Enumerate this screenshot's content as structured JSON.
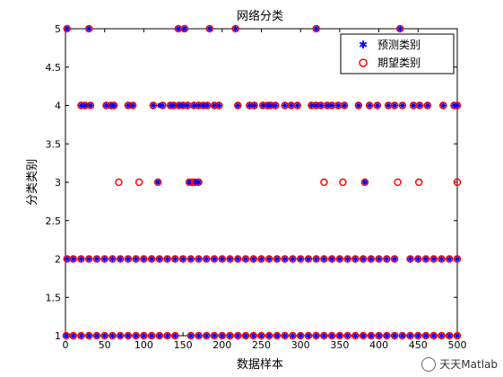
{
  "chart_data": {
    "type": "scatter",
    "title": "网络分类",
    "xlabel": "数据样本",
    "ylabel": "分类类别",
    "xlim": [
      0,
      500
    ],
    "ylim": [
      1,
      5
    ],
    "xticks": [
      0,
      50,
      100,
      150,
      200,
      250,
      300,
      350,
      400,
      450,
      500
    ],
    "yticks": [
      1,
      1.5,
      2,
      2.5,
      3,
      3.5,
      4,
      4.5,
      5
    ],
    "ytick_labels": [
      "1",
      "1.5",
      "2",
      "2.5",
      "3",
      "3.5",
      "4",
      "4.5",
      "5"
    ],
    "grid": false,
    "legend_position": "top-right",
    "series": [
      {
        "name": "预测类别",
        "marker": "star",
        "color": "#0000ff",
        "points": [
          [
            2,
            5
          ],
          [
            30,
            5
          ],
          [
            144,
            5
          ],
          [
            152,
            5
          ],
          [
            184,
            5
          ],
          [
            217,
            5
          ],
          [
            320,
            5
          ],
          [
            427,
            5
          ],
          [
            20,
            4
          ],
          [
            25,
            4
          ],
          [
            32,
            4
          ],
          [
            52,
            4
          ],
          [
            58,
            4
          ],
          [
            62,
            4
          ],
          [
            80,
            4
          ],
          [
            86,
            4
          ],
          [
            112,
            4
          ],
          [
            120,
            4
          ],
          [
            124,
            4
          ],
          [
            134,
            4
          ],
          [
            138,
            4
          ],
          [
            145,
            4
          ],
          [
            150,
            4
          ],
          [
            156,
            4
          ],
          [
            164,
            4
          ],
          [
            170,
            4
          ],
          [
            176,
            4
          ],
          [
            181,
            4
          ],
          [
            190,
            4
          ],
          [
            196,
            4
          ],
          [
            220,
            4
          ],
          [
            235,
            4
          ],
          [
            241,
            4
          ],
          [
            252,
            4
          ],
          [
            258,
            4
          ],
          [
            262,
            4
          ],
          [
            268,
            4
          ],
          [
            280,
            4
          ],
          [
            288,
            4
          ],
          [
            296,
            4
          ],
          [
            314,
            4
          ],
          [
            320,
            4
          ],
          [
            326,
            4
          ],
          [
            334,
            4
          ],
          [
            340,
            4
          ],
          [
            348,
            4
          ],
          [
            356,
            4
          ],
          [
            374,
            4
          ],
          [
            388,
            4
          ],
          [
            398,
            4
          ],
          [
            412,
            4
          ],
          [
            420,
            4
          ],
          [
            430,
            4
          ],
          [
            444,
            4
          ],
          [
            452,
            4
          ],
          [
            462,
            4
          ],
          [
            482,
            4
          ],
          [
            496,
            4
          ],
          [
            500,
            4
          ],
          [
            118,
            3
          ],
          [
            158,
            3
          ],
          [
            166,
            3
          ],
          [
            170,
            3
          ],
          [
            382,
            3
          ],
          [
            2,
            2
          ],
          [
            10,
            2
          ],
          [
            20,
            2
          ],
          [
            30,
            2
          ],
          [
            40,
            2
          ],
          [
            50,
            2
          ],
          [
            60,
            2
          ],
          [
            70,
            2
          ],
          [
            80,
            2
          ],
          [
            90,
            2
          ],
          [
            100,
            2
          ],
          [
            110,
            2
          ],
          [
            120,
            2
          ],
          [
            130,
            2
          ],
          [
            140,
            2
          ],
          [
            150,
            2
          ],
          [
            160,
            2
          ],
          [
            170,
            2
          ],
          [
            180,
            2
          ],
          [
            190,
            2
          ],
          [
            200,
            2
          ],
          [
            210,
            2
          ],
          [
            220,
            2
          ],
          [
            230,
            2
          ],
          [
            240,
            2
          ],
          [
            250,
            2
          ],
          [
            260,
            2
          ],
          [
            270,
            2
          ],
          [
            280,
            2
          ],
          [
            290,
            2
          ],
          [
            300,
            2
          ],
          [
            310,
            2
          ],
          [
            320,
            2
          ],
          [
            330,
            2
          ],
          [
            340,
            2
          ],
          [
            350,
            2
          ],
          [
            360,
            2
          ],
          [
            370,
            2
          ],
          [
            380,
            2
          ],
          [
            390,
            2
          ],
          [
            400,
            2
          ],
          [
            410,
            2
          ],
          [
            420,
            2
          ],
          [
            440,
            2
          ],
          [
            450,
            2
          ],
          [
            460,
            2
          ],
          [
            470,
            2
          ],
          [
            480,
            2
          ],
          [
            490,
            2
          ],
          [
            500,
            2
          ],
          [
            1,
            1
          ],
          [
            10,
            1
          ],
          [
            20,
            1
          ],
          [
            30,
            1
          ],
          [
            40,
            1
          ],
          [
            50,
            1
          ],
          [
            60,
            1
          ],
          [
            70,
            1
          ],
          [
            80,
            1
          ],
          [
            90,
            1
          ],
          [
            100,
            1
          ],
          [
            110,
            1
          ],
          [
            120,
            1
          ],
          [
            130,
            1
          ],
          [
            140,
            1
          ],
          [
            160,
            1
          ],
          [
            170,
            1
          ],
          [
            180,
            1
          ],
          [
            190,
            1
          ],
          [
            200,
            1
          ],
          [
            210,
            1
          ],
          [
            220,
            1
          ],
          [
            230,
            1
          ],
          [
            240,
            1
          ],
          [
            250,
            1
          ],
          [
            260,
            1
          ],
          [
            270,
            1
          ],
          [
            280,
            1
          ],
          [
            290,
            1
          ],
          [
            300,
            1
          ],
          [
            310,
            1
          ],
          [
            320,
            1
          ],
          [
            330,
            1
          ],
          [
            340,
            1
          ],
          [
            350,
            1
          ],
          [
            360,
            1
          ],
          [
            370,
            1
          ],
          [
            380,
            1
          ],
          [
            390,
            1
          ],
          [
            400,
            1
          ],
          [
            410,
            1
          ],
          [
            420,
            1
          ],
          [
            430,
            1
          ],
          [
            440,
            1
          ],
          [
            450,
            1
          ],
          [
            460,
            1
          ],
          [
            470,
            1
          ],
          [
            480,
            1
          ],
          [
            490,
            1
          ],
          [
            500,
            1
          ]
        ]
      },
      {
        "name": "期望类别",
        "marker": "circle",
        "color": "#ff0000",
        "points": [
          [
            2,
            5
          ],
          [
            30,
            5
          ],
          [
            144,
            5
          ],
          [
            152,
            5
          ],
          [
            184,
            5
          ],
          [
            217,
            5
          ],
          [
            320,
            5
          ],
          [
            427,
            5
          ],
          [
            20,
            4
          ],
          [
            25,
            4
          ],
          [
            32,
            4
          ],
          [
            52,
            4
          ],
          [
            58,
            4
          ],
          [
            62,
            4
          ],
          [
            80,
            4
          ],
          [
            86,
            4
          ],
          [
            112,
            4
          ],
          [
            124,
            4
          ],
          [
            134,
            4
          ],
          [
            138,
            4
          ],
          [
            145,
            4
          ],
          [
            150,
            4
          ],
          [
            156,
            4
          ],
          [
            164,
            4
          ],
          [
            170,
            4
          ],
          [
            176,
            4
          ],
          [
            181,
            4
          ],
          [
            190,
            4
          ],
          [
            196,
            4
          ],
          [
            220,
            4
          ],
          [
            235,
            4
          ],
          [
            241,
            4
          ],
          [
            252,
            4
          ],
          [
            258,
            4
          ],
          [
            262,
            4
          ],
          [
            268,
            4
          ],
          [
            280,
            4
          ],
          [
            288,
            4
          ],
          [
            296,
            4
          ],
          [
            314,
            4
          ],
          [
            320,
            4
          ],
          [
            326,
            4
          ],
          [
            334,
            4
          ],
          [
            340,
            4
          ],
          [
            348,
            4
          ],
          [
            356,
            4
          ],
          [
            374,
            4
          ],
          [
            388,
            4
          ],
          [
            398,
            4
          ],
          [
            412,
            4
          ],
          [
            420,
            4
          ],
          [
            430,
            4
          ],
          [
            444,
            4
          ],
          [
            452,
            4
          ],
          [
            462,
            4
          ],
          [
            482,
            4
          ],
          [
            496,
            4
          ],
          [
            500,
            4
          ],
          [
            68,
            3
          ],
          [
            94,
            3
          ],
          [
            118,
            3
          ],
          [
            158,
            3
          ],
          [
            162,
            3
          ],
          [
            166,
            3
          ],
          [
            170,
            3
          ],
          [
            330,
            3
          ],
          [
            354,
            3
          ],
          [
            382,
            3
          ],
          [
            424,
            3
          ],
          [
            451,
            3
          ],
          [
            500,
            3
          ],
          [
            2,
            2
          ],
          [
            10,
            2
          ],
          [
            20,
            2
          ],
          [
            30,
            2
          ],
          [
            40,
            2
          ],
          [
            50,
            2
          ],
          [
            60,
            2
          ],
          [
            70,
            2
          ],
          [
            80,
            2
          ],
          [
            90,
            2
          ],
          [
            100,
            2
          ],
          [
            110,
            2
          ],
          [
            120,
            2
          ],
          [
            130,
            2
          ],
          [
            140,
            2
          ],
          [
            150,
            2
          ],
          [
            160,
            2
          ],
          [
            170,
            2
          ],
          [
            180,
            2
          ],
          [
            190,
            2
          ],
          [
            200,
            2
          ],
          [
            210,
            2
          ],
          [
            220,
            2
          ],
          [
            230,
            2
          ],
          [
            240,
            2
          ],
          [
            250,
            2
          ],
          [
            260,
            2
          ],
          [
            270,
            2
          ],
          [
            280,
            2
          ],
          [
            290,
            2
          ],
          [
            300,
            2
          ],
          [
            310,
            2
          ],
          [
            320,
            2
          ],
          [
            330,
            2
          ],
          [
            340,
            2
          ],
          [
            350,
            2
          ],
          [
            360,
            2
          ],
          [
            370,
            2
          ],
          [
            380,
            2
          ],
          [
            390,
            2
          ],
          [
            400,
            2
          ],
          [
            410,
            2
          ],
          [
            420,
            2
          ],
          [
            440,
            2
          ],
          [
            450,
            2
          ],
          [
            460,
            2
          ],
          [
            470,
            2
          ],
          [
            480,
            2
          ],
          [
            490,
            2
          ],
          [
            500,
            2
          ],
          [
            1,
            1
          ],
          [
            10,
            1
          ],
          [
            20,
            1
          ],
          [
            30,
            1
          ],
          [
            40,
            1
          ],
          [
            50,
            1
          ],
          [
            60,
            1
          ],
          [
            70,
            1
          ],
          [
            80,
            1
          ],
          [
            90,
            1
          ],
          [
            100,
            1
          ],
          [
            110,
            1
          ],
          [
            120,
            1
          ],
          [
            130,
            1
          ],
          [
            140,
            1
          ],
          [
            160,
            1
          ],
          [
            170,
            1
          ],
          [
            180,
            1
          ],
          [
            190,
            1
          ],
          [
            200,
            1
          ],
          [
            210,
            1
          ],
          [
            220,
            1
          ],
          [
            230,
            1
          ],
          [
            240,
            1
          ],
          [
            250,
            1
          ],
          [
            260,
            1
          ],
          [
            270,
            1
          ],
          [
            280,
            1
          ],
          [
            290,
            1
          ],
          [
            300,
            1
          ],
          [
            310,
            1
          ],
          [
            320,
            1
          ],
          [
            330,
            1
          ],
          [
            340,
            1
          ],
          [
            350,
            1
          ],
          [
            360,
            1
          ],
          [
            370,
            1
          ],
          [
            380,
            1
          ],
          [
            390,
            1
          ],
          [
            400,
            1
          ],
          [
            410,
            1
          ],
          [
            420,
            1
          ],
          [
            430,
            1
          ],
          [
            440,
            1
          ],
          [
            450,
            1
          ],
          [
            460,
            1
          ],
          [
            470,
            1
          ],
          [
            480,
            1
          ],
          [
            490,
            1
          ],
          [
            500,
            1
          ]
        ]
      }
    ]
  },
  "watermark": "天天Matlab"
}
